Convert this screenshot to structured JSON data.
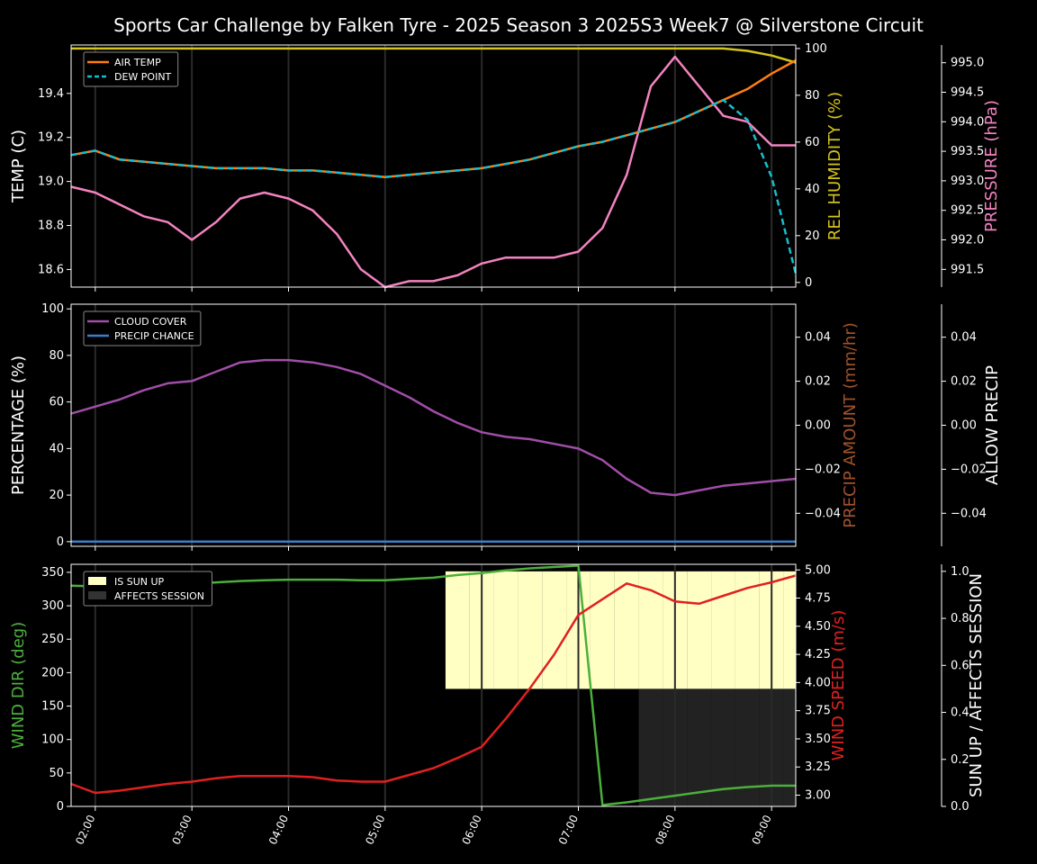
{
  "title": "Sports Car Challenge by Falken Tyre - 2025 Season 3 2025S3 Week7 @ Silverstone Circuit",
  "colors": {
    "background": "#000000",
    "axis": "#ffffff",
    "air_temp": "#ff7f0e",
    "dew_point": "#17becf",
    "humidity": "#d4c41c",
    "pressure": "#f383c0",
    "cloud_cover": "#a04ea8",
    "precip_chance": "#3a7fc8",
    "precip_amount": "#a0522d",
    "wind_dir": "#4caf3c",
    "wind_speed": "#e02020",
    "sun_up": "#ffffc4",
    "affects_session": "#222222",
    "vline": "#2a2a2a"
  },
  "chart_data": [
    {
      "type": "line",
      "name": "temperature-panel",
      "x": [
        "01:45",
        "02:00",
        "02:15",
        "02:30",
        "02:45",
        "03:00",
        "03:15",
        "03:30",
        "03:45",
        "04:00",
        "04:15",
        "04:30",
        "04:45",
        "05:00",
        "05:15",
        "05:30",
        "05:45",
        "06:00",
        "06:15",
        "06:30",
        "06:45",
        "07:00",
        "07:15",
        "07:30",
        "07:45",
        "08:00",
        "08:15",
        "08:30",
        "08:45",
        "09:00",
        "09:15"
      ],
      "xticks": [
        "02:00",
        "03:00",
        "04:00",
        "05:00",
        "06:00",
        "07:00",
        "08:00",
        "09:00"
      ],
      "ylabel": "TEMP (C)",
      "ylim": [
        18.52,
        19.62
      ],
      "yticks": [
        "18.6",
        "18.8",
        "19.0",
        "19.2",
        "19.4"
      ],
      "legend": [
        "AIR TEMP",
        "DEW POINT"
      ],
      "legend_position": "top-left",
      "series": [
        {
          "name": "AIR TEMP",
          "axis": "left",
          "values": [
            19.12,
            19.14,
            19.1,
            19.09,
            19.08,
            19.07,
            19.06,
            19.06,
            19.06,
            19.05,
            19.05,
            19.04,
            19.03,
            19.02,
            19.03,
            19.04,
            19.05,
            19.06,
            19.08,
            19.1,
            19.13,
            19.16,
            19.18,
            19.21,
            19.24,
            19.27,
            19.32,
            19.37,
            19.42,
            19.49,
            19.55
          ]
        },
        {
          "name": "DEW POINT",
          "axis": "left",
          "values": [
            19.12,
            19.14,
            19.1,
            19.09,
            19.08,
            19.07,
            19.06,
            19.06,
            19.06,
            19.05,
            19.05,
            19.04,
            19.03,
            19.02,
            19.03,
            19.04,
            19.05,
            19.06,
            19.08,
            19.1,
            19.13,
            19.16,
            19.18,
            19.21,
            19.24,
            19.27,
            19.32,
            19.37,
            19.28,
            19.02,
            18.58
          ]
        },
        {
          "name": "REL HUMIDITY",
          "axis": "right1",
          "values": [
            100,
            100,
            100,
            100,
            100,
            100,
            100,
            100,
            100,
            100,
            100,
            100,
            100,
            100,
            100,
            100,
            100,
            100,
            100,
            100,
            100,
            100,
            100,
            100,
            100,
            100,
            100,
            100,
            99,
            97,
            94
          ]
        },
        {
          "name": "PRESSURE",
          "axis": "right2",
          "values": [
            992.9,
            992.8,
            992.6,
            992.4,
            992.3,
            992.0,
            992.3,
            992.7,
            992.8,
            992.7,
            992.5,
            992.1,
            991.5,
            991.2,
            991.3,
            991.3,
            991.4,
            991.6,
            991.7,
            991.7,
            991.7,
            991.8,
            992.2,
            993.1,
            994.6,
            995.1,
            994.6,
            994.1,
            994.0,
            993.6,
            993.6
          ]
        }
      ],
      "right_axes": [
        {
          "label": "REL HUMIDITY (%)",
          "ylim": [
            -2,
            101.5
          ],
          "ticks": [
            "0",
            "20",
            "40",
            "60",
            "80",
            "100"
          ]
        },
        {
          "label": "PRESSURE (hPa)",
          "ylim": [
            991.2,
            995.3
          ],
          "ticks": [
            "991.5",
            "992.0",
            "992.5",
            "993.0",
            "993.5",
            "994.0",
            "994.5",
            "995.0"
          ]
        }
      ]
    },
    {
      "type": "line",
      "name": "cloud-panel",
      "ylabel": "PERCENTAGE (%)",
      "ylim": [
        -2,
        102
      ],
      "yticks": [
        "0",
        "20",
        "40",
        "60",
        "80",
        "100"
      ],
      "legend": [
        "CLOUD COVER",
        "PRECIP CHANCE"
      ],
      "legend_position": "top-left",
      "series": [
        {
          "name": "CLOUD COVER",
          "axis": "left",
          "values": [
            55,
            58,
            61,
            65,
            68,
            69,
            73,
            77,
            78,
            78,
            77,
            75,
            72,
            67,
            62,
            56,
            51,
            47,
            45,
            44,
            42,
            40,
            35,
            27,
            21,
            20,
            22,
            24,
            25,
            26,
            27
          ]
        },
        {
          "name": "PRECIP CHANCE",
          "axis": "left",
          "values": [
            0,
            0,
            0,
            0,
            0,
            0,
            0,
            0,
            0,
            0,
            0,
            0,
            0,
            0,
            0,
            0,
            0,
            0,
            0,
            0,
            0,
            0,
            0,
            0,
            0,
            0,
            0,
            0,
            0,
            0,
            0
          ]
        }
      ],
      "right_axes": [
        {
          "label": "PRECIP AMOUNT (mm/hr)",
          "ylim": [
            -0.055,
            0.055
          ],
          "ticks": [
            "−0.04",
            "−0.02",
            "0.00",
            "0.02",
            "0.04"
          ]
        },
        {
          "label": "ALLOW PRECIP",
          "ylim": [
            -0.055,
            0.055
          ],
          "ticks": [
            "−0.04",
            "−0.02",
            "0.00",
            "0.02",
            "0.04"
          ]
        }
      ]
    },
    {
      "type": "line",
      "name": "wind-panel",
      "ylabel": "WIND DIR (deg)",
      "ylim": [
        0,
        362
      ],
      "yticks": [
        "0",
        "50",
        "100",
        "150",
        "200",
        "250",
        "300",
        "350"
      ],
      "legend": [
        "IS SUN UP",
        "AFFECTS SESSION"
      ],
      "legend_position": "top-left",
      "series": [
        {
          "name": "WIND DIR",
          "axis": "left",
          "values": [
            330,
            329,
            329,
            330,
            331,
            333,
            335,
            337,
            338,
            339,
            339,
            339,
            338,
            338,
            340,
            342,
            346,
            349,
            353,
            356,
            358,
            360,
            2,
            6,
            11,
            16,
            21,
            26,
            29,
            31,
            31
          ]
        },
        {
          "name": "WIND SPEED",
          "axis": "right1",
          "values": [
            3.1,
            3.02,
            3.04,
            3.07,
            3.1,
            3.12,
            3.15,
            3.17,
            3.17,
            3.17,
            3.16,
            3.13,
            3.12,
            3.12,
            3.18,
            3.24,
            3.33,
            3.43,
            3.68,
            3.95,
            4.25,
            4.6,
            4.74,
            4.88,
            4.82,
            4.72,
            4.7,
            4.77,
            4.84,
            4.89,
            4.95
          ]
        },
        {
          "name": "IS SUN UP",
          "axis": "right2",
          "values": [
            0,
            0,
            0,
            0,
            0,
            0,
            0,
            0,
            0,
            0,
            0,
            0,
            0,
            0,
            0,
            0,
            1,
            1,
            1,
            1,
            1,
            1,
            1,
            1,
            1,
            1,
            1,
            1,
            1,
            1,
            1
          ]
        },
        {
          "name": "AFFECTS SESSION",
          "axis": "right2",
          "values": [
            0,
            0,
            0,
            0,
            0,
            0,
            0,
            0,
            0,
            0,
            0,
            0,
            0,
            0,
            0,
            0,
            0,
            0,
            0,
            0,
            0,
            0,
            0,
            0,
            1,
            1,
            1,
            1,
            1,
            1,
            1
          ]
        }
      ],
      "right_axes": [
        {
          "label": "WIND SPEED (m/s)",
          "ylim": [
            2.9,
            5.05
          ],
          "ticks": [
            "3.00",
            "3.25",
            "3.50",
            "3.75",
            "4.00",
            "4.25",
            "4.50",
            "4.75",
            "5.00"
          ]
        },
        {
          "label": "SUN UP / AFFECTS SESSION",
          "ylim": [
            0,
            1.03
          ],
          "ticks": [
            "0.0",
            "0.2",
            "0.4",
            "0.6",
            "0.8",
            "1.0"
          ]
        }
      ]
    }
  ]
}
